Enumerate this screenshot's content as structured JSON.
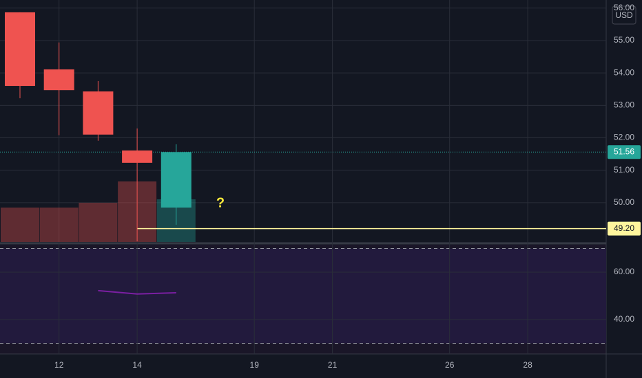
{
  "chart_data": {
    "type": "candlestick",
    "currency": "USD",
    "categories": [
      null,
      "12",
      null,
      "14",
      null,
      null,
      "19",
      null,
      "21",
      null,
      null,
      "26",
      null,
      "28",
      null
    ],
    "open": [
      55.87,
      54.11,
      53.43,
      51.61,
      49.85,
      null,
      null,
      null,
      null,
      null,
      null,
      null,
      null,
      null,
      null
    ],
    "high": [
      55.87,
      54.94,
      53.75,
      52.29,
      51.8,
      null,
      null,
      null,
      null,
      null,
      null,
      null,
      null,
      null,
      null
    ],
    "low": [
      53.22,
      52.08,
      51.91,
      48.81,
      49.32,
      null,
      null,
      null,
      null,
      null,
      null,
      null,
      null,
      null,
      null
    ],
    "close": [
      53.6,
      53.47,
      52.1,
      51.23,
      51.56,
      null,
      null,
      null,
      null,
      null,
      null,
      null,
      null,
      null,
      null
    ],
    "volume": [
      5.0,
      5.0,
      5.7,
      8.8,
      6.2,
      null,
      null,
      null,
      null,
      null,
      null,
      null,
      null,
      null,
      null
    ],
    "ylim": [
      48.79,
      56.25
    ],
    "yticks": [
      {
        "value": 50,
        "label": "50.00"
      },
      {
        "value": 51,
        "label": "51.00"
      },
      {
        "value": 52,
        "label": "52.00"
      },
      {
        "value": 53,
        "label": "53.00"
      },
      {
        "value": 54,
        "label": "54.00"
      },
      {
        "value": 55,
        "label": "55.00"
      },
      {
        "value": 56,
        "label": "56.00"
      }
    ],
    "last_price": 51.56,
    "level": {
      "value": 49.2,
      "label": "49.20"
    },
    "annotation": "?",
    "up_color": "#26a69a",
    "down_color": "#ef5350",
    "grid": true,
    "rsi": {
      "values": [
        null,
        null,
        52.2,
        50.8,
        51.3,
        null,
        null,
        null,
        null,
        null,
        null,
        null,
        null,
        null,
        null
      ],
      "color": "#7b1fa2",
      "ylim": [
        25.5,
        71.6
      ],
      "yticks": [
        {
          "value": 40,
          "label": "40.00"
        },
        {
          "value": 60,
          "label": "60.00"
        }
      ],
      "bands": [
        30,
        70
      ]
    }
  }
}
